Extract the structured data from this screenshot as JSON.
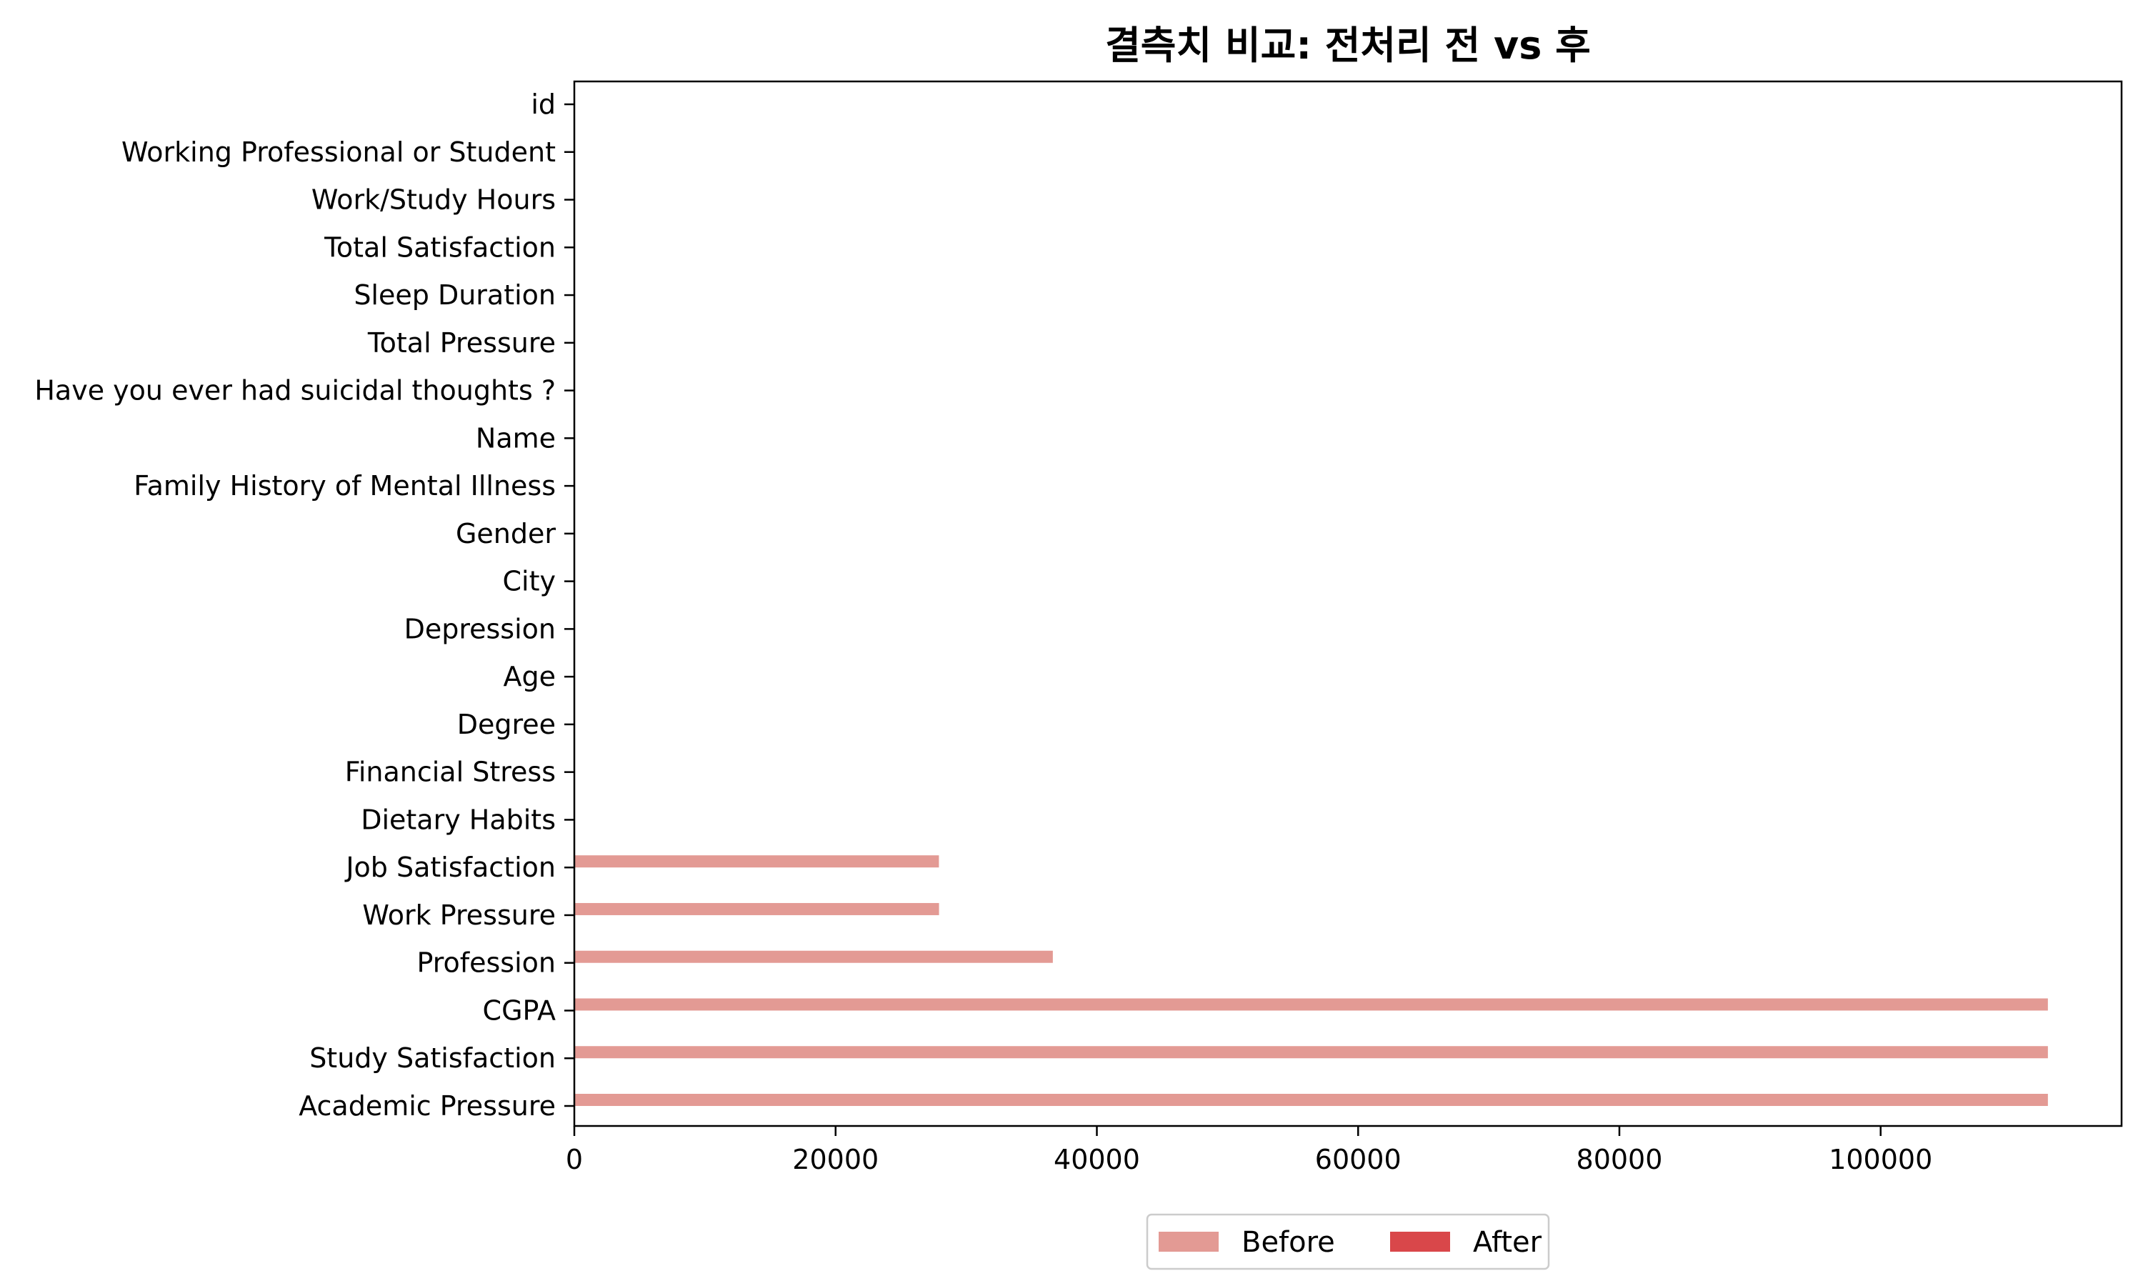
{
  "chart_data": {
    "type": "bar",
    "orientation": "horizontal",
    "title": "결측치 비교: 전처리 전 vs 후",
    "xlabel": "",
    "ylabel": "",
    "categories": [
      "Academic Pressure",
      "Study Satisfaction",
      "CGPA",
      "Profession",
      "Work Pressure",
      "Job Satisfaction",
      "Dietary Habits",
      "Financial Stress",
      "Degree",
      "Age",
      "Depression",
      "City",
      "Gender",
      "Family History of Mental Illness",
      "Name",
      "Have you ever had suicidal thoughts ?",
      "Total Pressure",
      "Sleep Duration",
      "Total Satisfaction",
      "Work/Study Hours",
      "Working Professional or Student",
      "id"
    ],
    "series": [
      {
        "name": "Before",
        "color": "#e39a94",
        "values": [
          112803,
          112803,
          112802,
          36630,
          27918,
          27910,
          4,
          4,
          2,
          0,
          0,
          0,
          0,
          0,
          0,
          0,
          0,
          0,
          0,
          0,
          0,
          0
        ]
      },
      {
        "name": "After",
        "color": "#d9474a",
        "values": [
          0,
          0,
          0,
          0,
          0,
          0,
          0,
          0,
          0,
          0,
          0,
          0,
          0,
          0,
          0,
          0,
          0,
          0,
          0,
          0,
          0,
          0
        ]
      }
    ],
    "xlim": [
      0,
      118443
    ],
    "xticks": [
      0,
      20000,
      40000,
      60000,
      80000,
      100000
    ],
    "grid": false,
    "legend_position": "bottom-center"
  }
}
